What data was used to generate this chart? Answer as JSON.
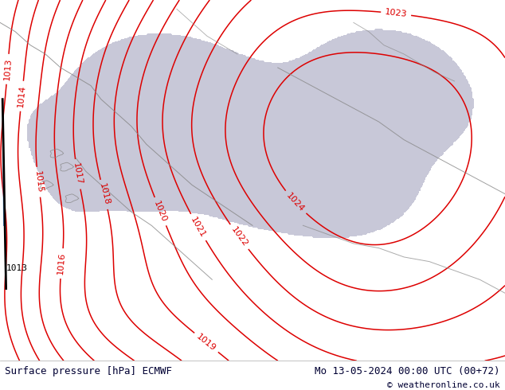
{
  "title_left": "Surface pressure [hPa] ECMWF",
  "title_right": "Mo 13-05-2024 00:00 UTC (00+72)",
  "copyright": "© weatheronline.co.uk",
  "background_map_color": "#b0de78",
  "sea_color": "#c8c8d8",
  "land_color": "#b0de78",
  "contour_color": "#dd0000",
  "border_color": "#888888",
  "label_color": "#dd0000",
  "bottom_bar_color": "#ffffff",
  "bottom_text_color": "#000033",
  "figsize": [
    6.34,
    4.9
  ],
  "dpi": 100,
  "contour_levels": [
    1013,
    1014,
    1015,
    1016,
    1017,
    1018,
    1019,
    1020,
    1021,
    1022,
    1023,
    1024
  ],
  "font_size_bottom": 9,
  "font_size_labels": 8
}
